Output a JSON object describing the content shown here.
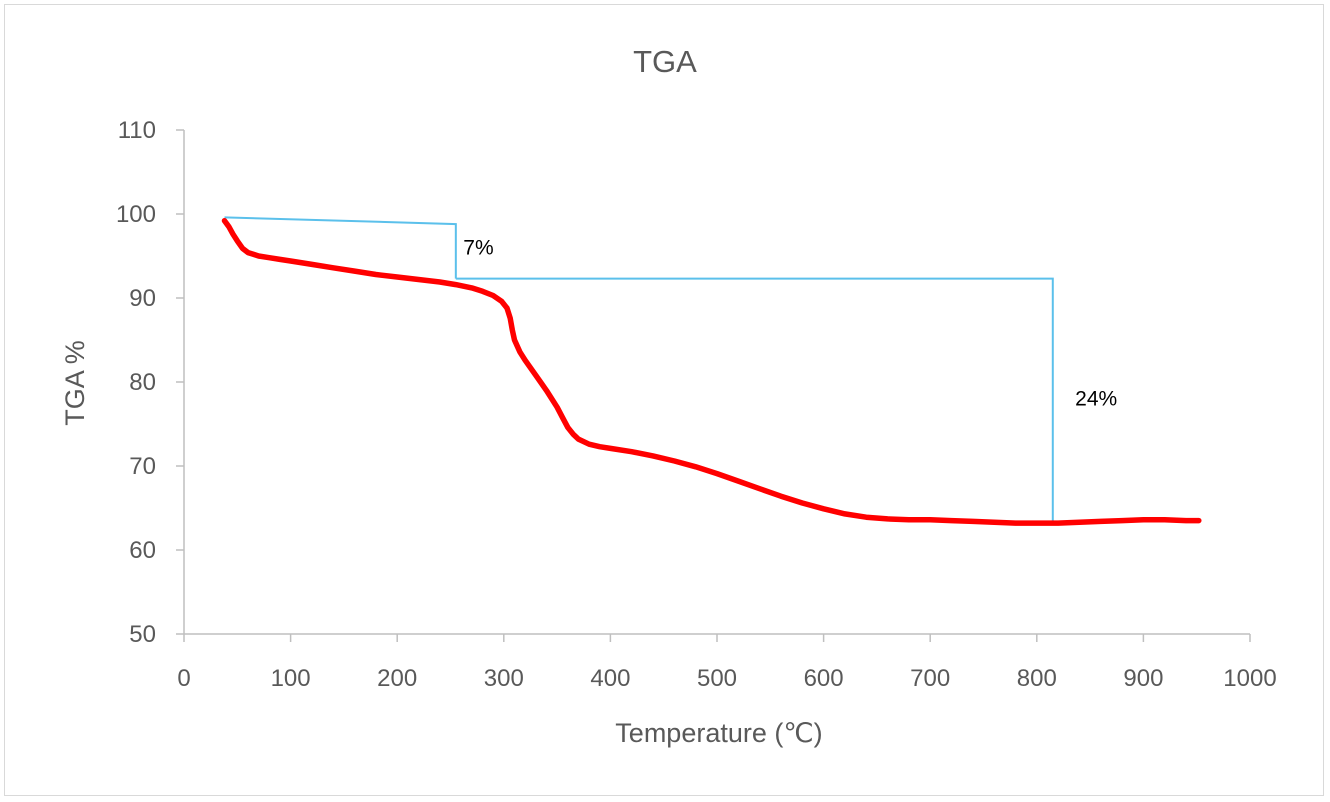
{
  "chart_data": {
    "type": "line",
    "title": "TGA",
    "xlabel": "Temperature (℃)",
    "ylabel": "TGA %",
    "xlim": [
      0,
      1000
    ],
    "ylim": [
      50,
      110
    ],
    "xticks": [
      0,
      100,
      200,
      300,
      400,
      500,
      600,
      700,
      800,
      900,
      1000
    ],
    "yticks": [
      50,
      60,
      70,
      80,
      90,
      100,
      110
    ],
    "grid": false,
    "legend": "none",
    "colors": {
      "series": "#ff0000",
      "annotation": "#5bc0eb",
      "axis": "#bfbfbf",
      "text": "#595959"
    },
    "series": [
      {
        "name": "TGA",
        "x": [
          38,
          42,
          46,
          50,
          55,
          60,
          65,
          70,
          80,
          90,
          100,
          120,
          140,
          160,
          180,
          200,
          220,
          240,
          255,
          270,
          280,
          290,
          298,
          303,
          306,
          308,
          310,
          315,
          320,
          330,
          340,
          350,
          355,
          360,
          365,
          370,
          380,
          390,
          400,
          420,
          440,
          460,
          480,
          500,
          520,
          540,
          560,
          580,
          600,
          620,
          640,
          660,
          680,
          700,
          720,
          740,
          760,
          780,
          800,
          820,
          840,
          860,
          880,
          900,
          920,
          940,
          952
        ],
        "y": [
          99.2,
          98.5,
          97.6,
          96.8,
          95.9,
          95.4,
          95.2,
          95.0,
          94.8,
          94.6,
          94.4,
          94.0,
          93.6,
          93.2,
          92.8,
          92.5,
          92.2,
          91.9,
          91.6,
          91.2,
          90.8,
          90.3,
          89.6,
          88.8,
          87.6,
          86.2,
          85.0,
          83.6,
          82.6,
          80.8,
          79.0,
          77.0,
          75.8,
          74.6,
          73.8,
          73.2,
          72.6,
          72.3,
          72.1,
          71.7,
          71.2,
          70.6,
          69.9,
          69.1,
          68.2,
          67.3,
          66.4,
          65.6,
          64.9,
          64.3,
          63.9,
          63.7,
          63.6,
          63.6,
          63.5,
          63.4,
          63.3,
          63.2,
          63.2,
          63.2,
          63.3,
          63.4,
          63.5,
          63.6,
          63.6,
          63.5,
          63.5
        ]
      }
    ],
    "annotations": [
      {
        "label": "7%",
        "path": [
          [
            38,
            99.6
          ],
          [
            255,
            98.8
          ],
          [
            255,
            92.3
          ]
        ],
        "label_at": [
          262,
          95.2
        ]
      },
      {
        "label": "24%",
        "path": [
          [
            255,
            92.3
          ],
          [
            815,
            92.3
          ],
          [
            815,
            63.3
          ]
        ],
        "label_at": [
          836,
          77.2
        ]
      }
    ]
  }
}
